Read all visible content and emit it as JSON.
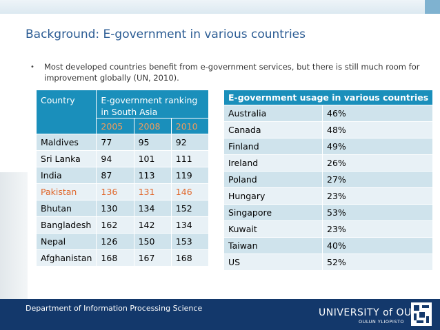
{
  "title": "Background: E-government in various countries",
  "bullet": "Most developed countries benefit from e-government services, but there is still much room for improvement globally (UN, 2010).",
  "ranking": {
    "col_country": "Country",
    "col_ranking": "E-government ranking in South Asia",
    "years": [
      "2005",
      "2008",
      "2010"
    ],
    "rows": [
      {
        "country": "Maldives",
        "v2005": "77",
        "v2008": "95",
        "v2010": "92"
      },
      {
        "country": "Sri Lanka",
        "v2005": "94",
        "v2008": "101",
        "v2010": "111"
      },
      {
        "country": "India",
        "v2005": "87",
        "v2008": "113",
        "v2010": "119"
      },
      {
        "country": "Pakistan",
        "v2005": "136",
        "v2008": "131",
        "v2010": "146"
      },
      {
        "country": "Bhutan",
        "v2005": "130",
        "v2008": "134",
        "v2010": "152"
      },
      {
        "country": "Bangladesh",
        "v2005": "162",
        "v2008": "142",
        "v2010": "134"
      },
      {
        "country": "Nepal",
        "v2005": "126",
        "v2008": "150",
        "v2010": "153"
      },
      {
        "country": "Afghanistan",
        "v2005": "168",
        "v2008": "167",
        "v2010": "168"
      }
    ],
    "highlight_color": "#e0662a"
  },
  "usage": {
    "header": "E-government usage in various countries",
    "rows": [
      {
        "country": "Australia",
        "pct": "46%"
      },
      {
        "country": "Canada",
        "pct": "48%"
      },
      {
        "country": "Finland",
        "pct": "49%"
      },
      {
        "country": "Ireland",
        "pct": "26%"
      },
      {
        "country": "Poland",
        "pct": "27%"
      },
      {
        "country": "Hungary",
        "pct": "23%"
      },
      {
        "country": "Singapore",
        "pct": "53%"
      },
      {
        "country": "Kuwait",
        "pct": "23%"
      },
      {
        "country": "Taiwan",
        "pct": "40%"
      },
      {
        "country": "US",
        "pct": "52%"
      }
    ]
  },
  "footer": {
    "department": "Department of Information Processing Science",
    "university": "UNIVERSITY of OULU",
    "university_sub": "OULUN YLIOPISTO"
  },
  "colors": {
    "accent": "#1a8fbb",
    "title": "#2a5b93",
    "footer": "#13386b",
    "year": "#f39c5a"
  }
}
